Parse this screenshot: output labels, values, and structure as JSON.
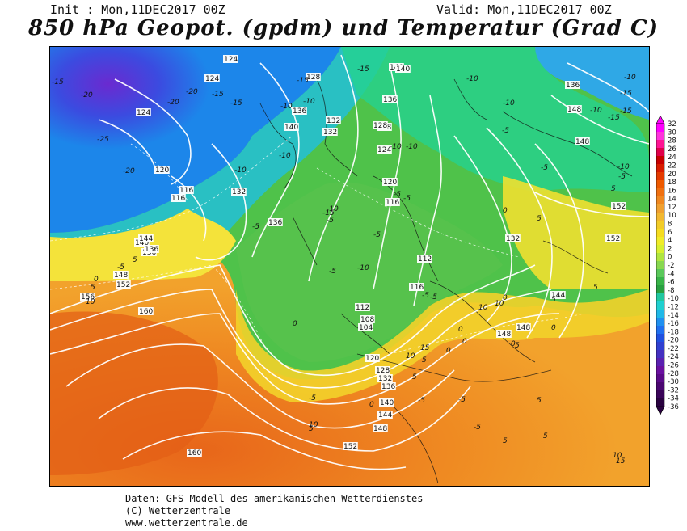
{
  "header": {
    "init": "Init : Mon,11DEC2017 00Z",
    "valid": "Valid: Mon,11DEC2017 00Z",
    "title": "850 hPa Geopot. (gpdm) und Temperatur (Grad C)"
  },
  "colorbar": {
    "labels": [
      "32",
      "30",
      "28",
      "26",
      "24",
      "22",
      "20",
      "18",
      "16",
      "14",
      "12",
      "10",
      "8",
      "6",
      "4",
      "2",
      "0",
      "-2",
      "-4",
      "-6",
      "-8",
      "-10",
      "-12",
      "-14",
      "-16",
      "-18",
      "-20",
      "-22",
      "-24",
      "-26",
      "-28",
      "-30",
      "-32",
      "-34",
      "-36"
    ],
    "colors": [
      "#ff00ff",
      "#ff33dd",
      "#ff1493",
      "#e0004a",
      "#c80000",
      "#d81c00",
      "#e43a00",
      "#ee5a00",
      "#f07010",
      "#f08820",
      "#f0a030",
      "#f2b830",
      "#f2cc28",
      "#f5dc20",
      "#f0ec28",
      "#d8f030",
      "#b0e640",
      "#88d850",
      "#5ac85a",
      "#38b448",
      "#28a040",
      "#20c8a0",
      "#20d0d0",
      "#20b8e8",
      "#2090f0",
      "#2070f0",
      "#2050e0",
      "#3040d0",
      "#4430c0",
      "#5a20b0",
      "#6a10a0",
      "#5a0a88",
      "#4a0670",
      "#3a0458",
      "#2a0240"
    ]
  },
  "map": {
    "geopotential_labels": [
      "124",
      "124",
      "128",
      "136",
      "132",
      "140",
      "132",
      "128",
      "136",
      "140",
      "136",
      "148",
      "148",
      "152",
      "152",
      "144",
      "148",
      "148",
      "120",
      "116",
      "116",
      "124",
      "128",
      "136",
      "132",
      "120",
      "116",
      "112",
      "116",
      "112",
      "108",
      "104",
      "120",
      "128",
      "132",
      "136",
      "140",
      "144",
      "148",
      "152",
      "132",
      "136",
      "140",
      "144",
      "148",
      "152",
      "156",
      "160",
      "160",
      "140",
      "124",
      "136"
    ],
    "temperature_labels": [
      "-15",
      "-20",
      "-25",
      "-20",
      "-20",
      "-15",
      "-20",
      "-15",
      "-15",
      "-10",
      "-10",
      "-15",
      "-10",
      "-5",
      "-10",
      "-5",
      "-10",
      "-15",
      "-10",
      "-5",
      "-10",
      "-10",
      "-5",
      "-5",
      "-5",
      "-5",
      "-10",
      "0",
      "5",
      "5",
      "0",
      "5",
      "5",
      "10",
      "10",
      "15",
      "10",
      "5",
      "5",
      "0",
      "-10",
      "-10",
      "-15",
      "-10",
      "-5",
      "-5",
      "-5",
      "-5",
      "0",
      "0",
      "5",
      "0",
      "-5",
      "0",
      "5",
      "-5",
      "0",
      "5",
      "10",
      "-5",
      "-5",
      "5",
      "5",
      "10",
      "15",
      "5",
      "10",
      "5",
      "-5",
      "0",
      "0",
      "-10",
      "-15",
      "-15"
    ]
  },
  "footer": {
    "line1": "Daten: GFS-Modell des amerikanischen Wetterdienstes",
    "line2": "(C) Wetterzentrale",
    "line3": "www.wetterzentrale.de"
  }
}
